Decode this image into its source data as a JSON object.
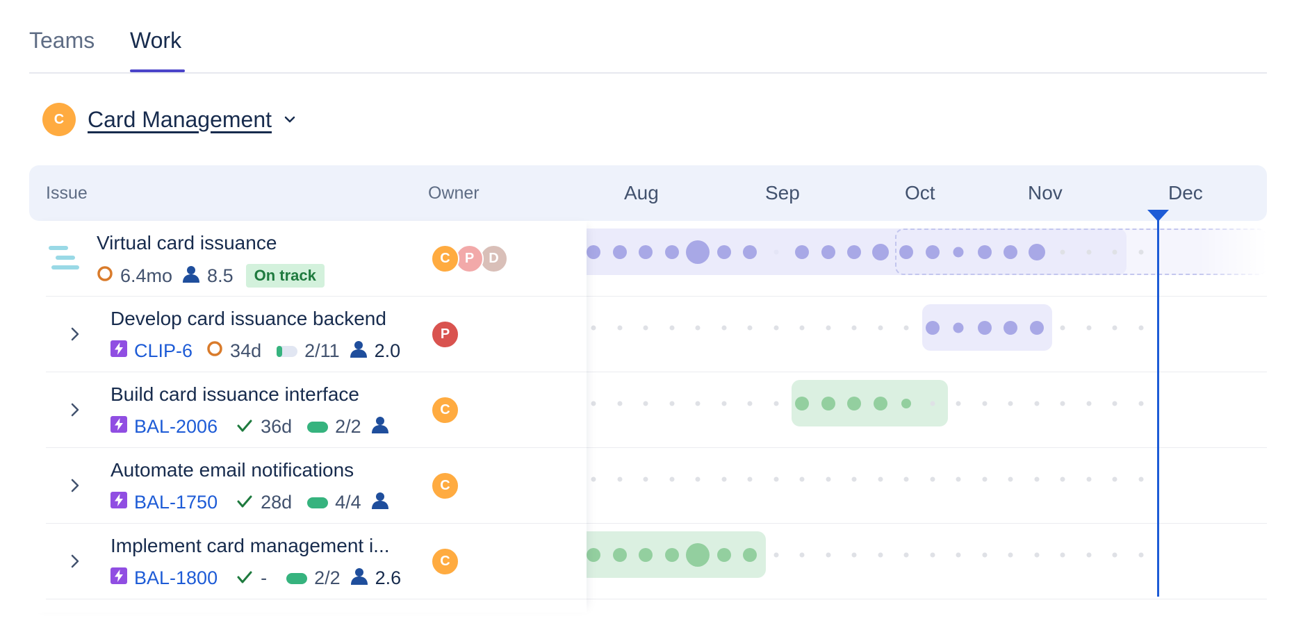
{
  "tabs": [
    {
      "label": "Teams",
      "active": false
    },
    {
      "label": "Work",
      "active": true
    }
  ],
  "team": {
    "avatar_letter": "C",
    "name": "Card Management",
    "avatar_color": "#ffab40"
  },
  "columns": {
    "issue": "Issue",
    "owner": "Owner"
  },
  "months": [
    "Aug",
    "Sep",
    "Oct",
    "Nov",
    "Dec"
  ],
  "rows": [
    {
      "title": "Virtual card issuance",
      "duration": "6.4mo",
      "effort": "8.5",
      "status": "On track",
      "owners": [
        {
          "letter": "C",
          "color": "#ffab40"
        },
        {
          "letter": "P",
          "color": "#f2a9a9"
        },
        {
          "letter": "D",
          "color": "#d9bfb8"
        }
      ]
    },
    {
      "title": "Develop card issuance backend",
      "key": "CLIP-6",
      "duration": "34d",
      "progress": "2/11",
      "effort": "2.0",
      "owners": [
        {
          "letter": "P",
          "color": "#d9534f"
        }
      ]
    },
    {
      "title": "Build card issuance interface",
      "key": "BAL-2006",
      "duration": "36d",
      "progress": "2/2",
      "owners": [
        {
          "letter": "C",
          "color": "#ffab40"
        }
      ]
    },
    {
      "title": "Automate email notifications",
      "key": "BAL-1750",
      "duration": "28d",
      "progress": "4/4",
      "owners": [
        {
          "letter": "C",
          "color": "#ffab40"
        }
      ]
    },
    {
      "title": "Implement card management i...",
      "key": "BAL-1800",
      "duration": "-",
      "progress": "2/2",
      "effort": "2.6",
      "owners": [
        {
          "letter": "C",
          "color": "#ffab40"
        }
      ]
    }
  ],
  "colors": {
    "accent": "#4b44c9",
    "today_line": "#1d5bd6",
    "purple_bar": "#ebebfb",
    "purple_dot": "#a8a8e6",
    "green_bar": "#dbf0e1",
    "green_dot": "#93cf9f",
    "status_badge_bg": "#d3f1dc",
    "status_badge_text": "#1e7a3e",
    "issue_key": "#1d5bd6"
  },
  "icons": {
    "row_expand": "chevron-right-icon",
    "team_menu": "chevron-down-icon",
    "epic": "epic-bars-icon",
    "story": "lightning-icon",
    "in_progress": "ring-icon",
    "done": "check-icon",
    "people": "person-icon"
  }
}
